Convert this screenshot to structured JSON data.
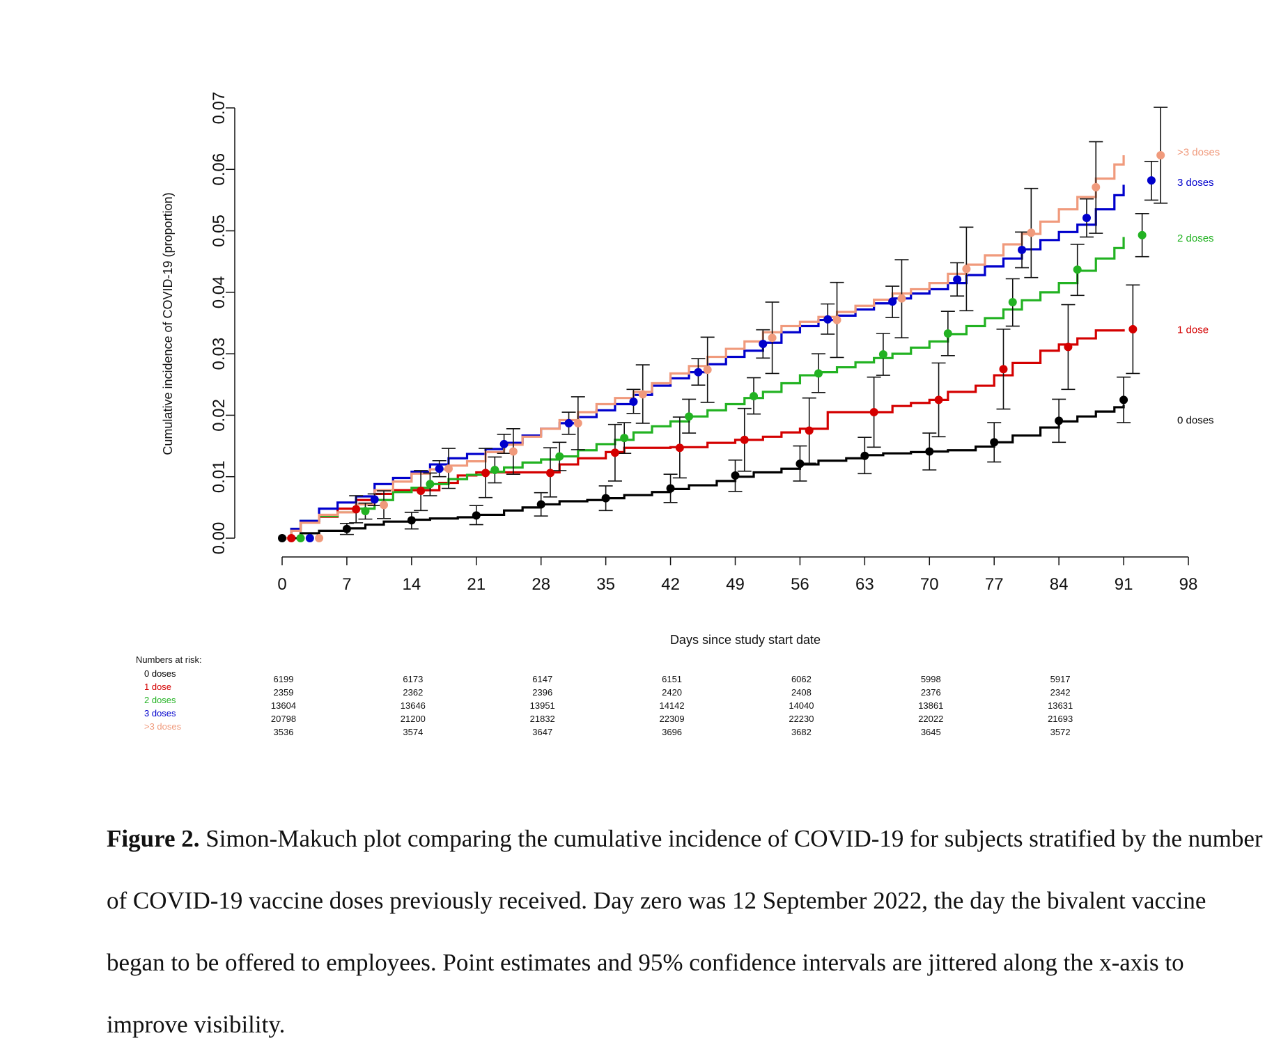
{
  "chart_data": {
    "type": "line",
    "title": "",
    "xlabel": "Days since study start date",
    "ylabel": "Cumulative incidence of COVID-19 (proportion)",
    "xlim": [
      0,
      98
    ],
    "ylim": [
      0,
      0.07
    ],
    "x_ticks": [
      "0",
      "7",
      "14",
      "21",
      "28",
      "35",
      "42",
      "49",
      "56",
      "63",
      "70",
      "77",
      "84",
      "91",
      "98"
    ],
    "y_ticks": [
      "0.00",
      "0.01",
      "0.02",
      "0.03",
      "0.04",
      "0.05",
      "0.06",
      "0.07"
    ],
    "grid": false,
    "legend_placement": "right",
    "series": [
      {
        "name": "0 doses",
        "color": "#000000",
        "curve_x": [
          0,
          2,
          4,
          7,
          9,
          11,
          14,
          16,
          19,
          21,
          24,
          26,
          28,
          30,
          33,
          35,
          37,
          40,
          42,
          44,
          47,
          49,
          51,
          54,
          56,
          58,
          61,
          63,
          65,
          68,
          70,
          72,
          75,
          77,
          79,
          82,
          84,
          86,
          88,
          90,
          91
        ],
        "curve_y": [
          0,
          0.0008,
          0.0012,
          0.0016,
          0.0022,
          0.0027,
          0.003,
          0.0032,
          0.0034,
          0.0038,
          0.0045,
          0.005,
          0.0055,
          0.006,
          0.0062,
          0.0065,
          0.007,
          0.0075,
          0.008,
          0.0086,
          0.0093,
          0.01,
          0.0107,
          0.0113,
          0.012,
          0.0126,
          0.013,
          0.0135,
          0.0138,
          0.014,
          0.0141,
          0.0143,
          0.0149,
          0.0156,
          0.0167,
          0.018,
          0.019,
          0.0198,
          0.0206,
          0.0213,
          0.0217
        ],
        "points": [
          {
            "x": 0.0,
            "y": 0.0,
            "lo": 0.0,
            "hi": 0.0
          },
          {
            "x": 7.0,
            "y": 0.0015,
            "lo": 0.0006,
            "hi": 0.0024
          },
          {
            "x": 14.0,
            "y": 0.0029,
            "lo": 0.0015,
            "hi": 0.0042
          },
          {
            "x": 21.0,
            "y": 0.0037,
            "lo": 0.0022,
            "hi": 0.0053
          },
          {
            "x": 28.0,
            "y": 0.0055,
            "lo": 0.0036,
            "hi": 0.0074
          },
          {
            "x": 35.0,
            "y": 0.0065,
            "lo": 0.0045,
            "hi": 0.0085
          },
          {
            "x": 42.0,
            "y": 0.0081,
            "lo": 0.0058,
            "hi": 0.0104
          },
          {
            "x": 49.0,
            "y": 0.0102,
            "lo": 0.0076,
            "hi": 0.0127
          },
          {
            "x": 56.0,
            "y": 0.0121,
            "lo": 0.0093,
            "hi": 0.015
          },
          {
            "x": 63.0,
            "y": 0.0134,
            "lo": 0.0105,
            "hi": 0.0164
          },
          {
            "x": 70.0,
            "y": 0.0141,
            "lo": 0.0111,
            "hi": 0.0171
          },
          {
            "x": 77.0,
            "y": 0.0156,
            "lo": 0.0124,
            "hi": 0.0188
          },
          {
            "x": 84.0,
            "y": 0.0191,
            "lo": 0.0156,
            "hi": 0.0226
          },
          {
            "x": 91.0,
            "y": 0.0225,
            "lo": 0.0188,
            "hi": 0.0262
          }
        ]
      },
      {
        "name": "1 dose",
        "color": "#d40000",
        "curve_x": [
          0,
          1,
          2,
          4,
          6,
          8,
          10,
          12,
          14,
          17,
          19,
          21,
          24,
          26,
          28,
          30,
          32,
          35,
          37,
          40,
          42,
          44,
          46,
          49,
          52,
          54,
          56,
          59,
          61,
          63,
          66,
          68,
          70,
          72,
          75,
          77,
          79,
          82,
          84,
          86,
          88,
          90,
          91
        ],
        "curve_y": [
          0,
          0.0012,
          0.0025,
          0.0035,
          0.0048,
          0.0062,
          0.0072,
          0.0078,
          0.0078,
          0.009,
          0.0102,
          0.0107,
          0.0107,
          0.0107,
          0.0107,
          0.012,
          0.013,
          0.014,
          0.0147,
          0.0147,
          0.0148,
          0.0148,
          0.0155,
          0.016,
          0.0165,
          0.0172,
          0.0178,
          0.0205,
          0.0205,
          0.0205,
          0.0215,
          0.022,
          0.0225,
          0.0238,
          0.0248,
          0.0265,
          0.0285,
          0.0305,
          0.0315,
          0.0325,
          0.0338,
          0.0338,
          0.034
        ],
        "points": [
          {
            "x": 1.0,
            "y": 0.0,
            "lo": 0.0,
            "hi": 0.0
          },
          {
            "x": 8.0,
            "y": 0.0047,
            "lo": 0.0025,
            "hi": 0.0069
          },
          {
            "x": 15.0,
            "y": 0.0077,
            "lo": 0.0045,
            "hi": 0.011
          },
          {
            "x": 22.0,
            "y": 0.0106,
            "lo": 0.0066,
            "hi": 0.0146
          },
          {
            "x": 29.0,
            "y": 0.0106,
            "lo": 0.0067,
            "hi": 0.0147
          },
          {
            "x": 36.0,
            "y": 0.0139,
            "lo": 0.0093,
            "hi": 0.0185
          },
          {
            "x": 43.0,
            "y": 0.0147,
            "lo": 0.0098,
            "hi": 0.0197
          },
          {
            "x": 50.0,
            "y": 0.016,
            "lo": 0.0109,
            "hi": 0.0211
          },
          {
            "x": 57.0,
            "y": 0.0175,
            "lo": 0.0122,
            "hi": 0.0228
          },
          {
            "x": 64.0,
            "y": 0.0205,
            "lo": 0.0148,
            "hi": 0.0262
          },
          {
            "x": 71.0,
            "y": 0.0225,
            "lo": 0.0165,
            "hi": 0.0285
          },
          {
            "x": 78.0,
            "y": 0.0275,
            "lo": 0.021,
            "hi": 0.034
          },
          {
            "x": 85.0,
            "y": 0.0311,
            "lo": 0.0242,
            "hi": 0.038
          },
          {
            "x": 92.0,
            "y": 0.034,
            "lo": 0.0268,
            "hi": 0.0412
          }
        ]
      },
      {
        "name": "2 doses",
        "color": "#22b222",
        "curve_x": [
          0,
          1,
          2,
          4,
          6,
          8,
          10,
          12,
          14,
          16,
          18,
          20,
          22,
          24,
          26,
          28,
          30,
          32,
          34,
          36,
          38,
          40,
          42,
          44,
          46,
          48,
          50,
          52,
          54,
          56,
          58,
          60,
          62,
          64,
          66,
          68,
          70,
          72,
          74,
          76,
          78,
          80,
          82,
          84,
          86,
          88,
          90,
          91
        ],
        "curve_y": [
          0,
          0.0015,
          0.0028,
          0.0036,
          0.0042,
          0.0048,
          0.0062,
          0.0075,
          0.0082,
          0.0088,
          0.0096,
          0.0103,
          0.0108,
          0.0115,
          0.0123,
          0.0128,
          0.0133,
          0.0143,
          0.0153,
          0.016,
          0.0172,
          0.0182,
          0.019,
          0.0198,
          0.0208,
          0.0218,
          0.0228,
          0.0238,
          0.0252,
          0.0265,
          0.027,
          0.0278,
          0.0286,
          0.0293,
          0.03,
          0.031,
          0.032,
          0.0332,
          0.0345,
          0.0358,
          0.0372,
          0.0387,
          0.04,
          0.0415,
          0.0435,
          0.0455,
          0.0472,
          0.049
        ],
        "points": [
          {
            "x": 2.0,
            "y": 0.0,
            "lo": 0.0,
            "hi": 0.0
          },
          {
            "x": 9.0,
            "y": 0.0044,
            "lo": 0.0031,
            "hi": 0.0057
          },
          {
            "x": 16.0,
            "y": 0.0088,
            "lo": 0.0069,
            "hi": 0.0106
          },
          {
            "x": 23.0,
            "y": 0.0111,
            "lo": 0.009,
            "hi": 0.0132
          },
          {
            "x": 30.0,
            "y": 0.0133,
            "lo": 0.011,
            "hi": 0.0156
          },
          {
            "x": 37.0,
            "y": 0.0163,
            "lo": 0.0138,
            "hi": 0.0188
          },
          {
            "x": 44.0,
            "y": 0.0198,
            "lo": 0.0171,
            "hi": 0.0226
          },
          {
            "x": 51.0,
            "y": 0.0231,
            "lo": 0.0202,
            "hi": 0.0261
          },
          {
            "x": 58.0,
            "y": 0.0268,
            "lo": 0.0237,
            "hi": 0.03
          },
          {
            "x": 65.0,
            "y": 0.0299,
            "lo": 0.0265,
            "hi": 0.0333
          },
          {
            "x": 72.0,
            "y": 0.0333,
            "lo": 0.0297,
            "hi": 0.0369
          },
          {
            "x": 79.0,
            "y": 0.0384,
            "lo": 0.0345,
            "hi": 0.0422
          },
          {
            "x": 86.0,
            "y": 0.0437,
            "lo": 0.0395,
            "hi": 0.0478
          },
          {
            "x": 93.0,
            "y": 0.0493,
            "lo": 0.0458,
            "hi": 0.0528
          }
        ]
      },
      {
        "name": "3 doses",
        "color": "#0000cc",
        "curve_x": [
          0,
          1,
          2,
          4,
          6,
          8,
          10,
          12,
          14,
          16,
          18,
          20,
          22,
          24,
          26,
          28,
          30,
          32,
          34,
          36,
          38,
          40,
          42,
          44,
          46,
          48,
          50,
          52,
          54,
          56,
          58,
          60,
          62,
          64,
          66,
          68,
          70,
          72,
          74,
          76,
          78,
          80,
          82,
          84,
          86,
          88,
          90,
          91
        ],
        "curve_y": [
          0,
          0.0015,
          0.0028,
          0.0048,
          0.0058,
          0.0068,
          0.0088,
          0.0098,
          0.0108,
          0.012,
          0.013,
          0.0137,
          0.0145,
          0.0155,
          0.0167,
          0.0178,
          0.0187,
          0.0197,
          0.0208,
          0.0218,
          0.0233,
          0.0248,
          0.026,
          0.027,
          0.0283,
          0.0295,
          0.0305,
          0.0318,
          0.0335,
          0.0345,
          0.0355,
          0.0362,
          0.0372,
          0.0382,
          0.039,
          0.0398,
          0.0405,
          0.0415,
          0.0428,
          0.0442,
          0.0455,
          0.047,
          0.0485,
          0.0498,
          0.051,
          0.0535,
          0.0558,
          0.0575
        ],
        "points": [
          {
            "x": 3.0,
            "y": 0.0,
            "lo": 0.0,
            "hi": 0.0
          },
          {
            "x": 10.0,
            "y": 0.0063,
            "lo": 0.0053,
            "hi": 0.0072
          },
          {
            "x": 17.0,
            "y": 0.0113,
            "lo": 0.01,
            "hi": 0.0126
          },
          {
            "x": 24.0,
            "y": 0.0153,
            "lo": 0.0138,
            "hi": 0.0169
          },
          {
            "x": 31.0,
            "y": 0.0187,
            "lo": 0.0169,
            "hi": 0.0205
          },
          {
            "x": 38.0,
            "y": 0.0222,
            "lo": 0.0203,
            "hi": 0.0242
          },
          {
            "x": 45.0,
            "y": 0.027,
            "lo": 0.0249,
            "hi": 0.0292
          },
          {
            "x": 52.0,
            "y": 0.0316,
            "lo": 0.0293,
            "hi": 0.0339
          },
          {
            "x": 59.0,
            "y": 0.0356,
            "lo": 0.0332,
            "hi": 0.0381
          },
          {
            "x": 66.0,
            "y": 0.0385,
            "lo": 0.0359,
            "hi": 0.041
          },
          {
            "x": 73.0,
            "y": 0.0421,
            "lo": 0.0394,
            "hi": 0.0448
          },
          {
            "x": 80.0,
            "y": 0.0469,
            "lo": 0.044,
            "hi": 0.0498
          },
          {
            "x": 87.0,
            "y": 0.0521,
            "lo": 0.049,
            "hi": 0.0552
          },
          {
            "x": 94.0,
            "y": 0.0582,
            "lo": 0.055,
            "hi": 0.0613
          }
        ]
      },
      {
        "name": ">3 doses",
        "color": "#f09a7c",
        "curve_x": [
          0,
          1,
          2,
          4,
          6,
          8,
          10,
          12,
          14,
          16,
          18,
          20,
          22,
          24,
          26,
          28,
          30,
          32,
          34,
          36,
          38,
          40,
          42,
          44,
          46,
          48,
          50,
          52,
          54,
          56,
          58,
          60,
          62,
          64,
          66,
          68,
          70,
          72,
          74,
          76,
          78,
          80,
          82,
          84,
          86,
          88,
          90,
          91
        ],
        "curve_y": [
          0,
          0.0012,
          0.0025,
          0.0038,
          0.0042,
          0.0055,
          0.0078,
          0.0092,
          0.0105,
          0.0112,
          0.0118,
          0.0125,
          0.014,
          0.0152,
          0.0165,
          0.0178,
          0.0192,
          0.0205,
          0.0218,
          0.0228,
          0.0238,
          0.0252,
          0.0268,
          0.028,
          0.0295,
          0.0308,
          0.032,
          0.0335,
          0.0345,
          0.0352,
          0.036,
          0.0368,
          0.0378,
          0.0388,
          0.0398,
          0.0405,
          0.0415,
          0.043,
          0.0445,
          0.046,
          0.0478,
          0.0495,
          0.0515,
          0.0535,
          0.0555,
          0.0585,
          0.0608,
          0.0623
        ],
        "points": [
          {
            "x": 4.0,
            "y": 0.0,
            "lo": 0.0,
            "hi": 0.0
          },
          {
            "x": 11.0,
            "y": 0.0054,
            "lo": 0.0032,
            "hi": 0.0077
          },
          {
            "x": 18.0,
            "y": 0.0113,
            "lo": 0.0081,
            "hi": 0.0146
          },
          {
            "x": 25.0,
            "y": 0.0141,
            "lo": 0.0104,
            "hi": 0.0178
          },
          {
            "x": 32.0,
            "y": 0.0187,
            "lo": 0.0144,
            "hi": 0.023
          },
          {
            "x": 39.0,
            "y": 0.0234,
            "lo": 0.0187,
            "hi": 0.0282
          },
          {
            "x": 46.0,
            "y": 0.0274,
            "lo": 0.0221,
            "hi": 0.0327
          },
          {
            "x": 53.0,
            "y": 0.0326,
            "lo": 0.0268,
            "hi": 0.0384
          },
          {
            "x": 60.0,
            "y": 0.0355,
            "lo": 0.0294,
            "hi": 0.0416
          },
          {
            "x": 67.0,
            "y": 0.039,
            "lo": 0.0326,
            "hi": 0.0453
          },
          {
            "x": 74.0,
            "y": 0.0438,
            "lo": 0.037,
            "hi": 0.0506
          },
          {
            "x": 81.0,
            "y": 0.0497,
            "lo": 0.0424,
            "hi": 0.0569
          },
          {
            "x": 88.0,
            "y": 0.0571,
            "lo": 0.0496,
            "hi": 0.0645
          },
          {
            "x": 95.0,
            "y": 0.0623,
            "lo": 0.0545,
            "hi": 0.0701
          }
        ]
      }
    ],
    "numbers_at_risk": {
      "title": "Numbers at risk:",
      "days": [
        0,
        14,
        28,
        42,
        56,
        70,
        84
      ],
      "rows": [
        {
          "label": "0 doses",
          "color": "#000000",
          "values": [
            "6199",
            "6173",
            "6147",
            "6151",
            "6062",
            "5998",
            "5917"
          ]
        },
        {
          "label": "1 dose",
          "color": "#d40000",
          "values": [
            "2359",
            "2362",
            "2396",
            "2420",
            "2408",
            "2376",
            "2342"
          ]
        },
        {
          "label": "2 doses",
          "color": "#22b222",
          "values": [
            "13604",
            "13646",
            "13951",
            "14142",
            "14040",
            "13861",
            "13631"
          ]
        },
        {
          "label": "3 doses",
          "color": "#0000cc",
          "values": [
            "20798",
            "21200",
            "21832",
            "22309",
            "22230",
            "22022",
            "21693"
          ]
        },
        {
          "label": ">3 doses",
          "color": "#f09a7c",
          "values": [
            "3536",
            "3574",
            "3647",
            "3696",
            "3682",
            "3645",
            "3572"
          ]
        }
      ]
    }
  },
  "caption": {
    "label": "Figure 2.",
    "text": " Simon-Makuch plot comparing the cumulative incidence of COVID-19 for subjects stratified by the number of COVID-19 vaccine doses previously received. Day zero was 12 September 2022, the day the bivalent vaccine began to be offered to employees. Point estimates and 95% confidence intervals are jittered along the x-axis to improve visibility."
  }
}
